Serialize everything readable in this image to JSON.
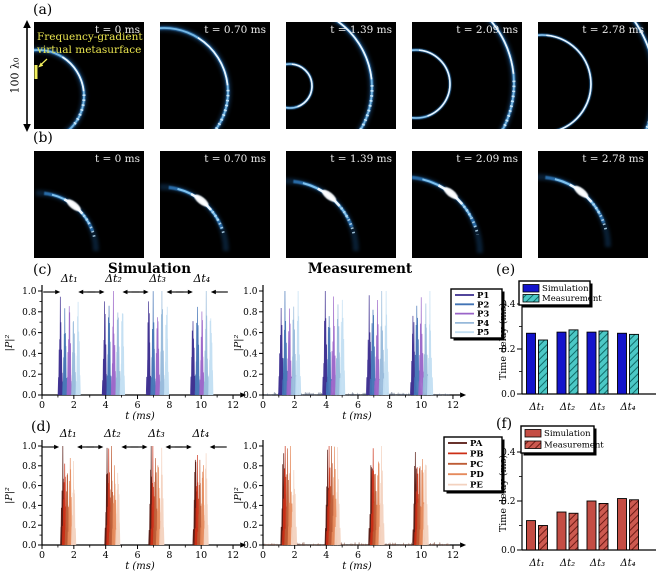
{
  "figure": {
    "labels": {
      "a": "(a)",
      "b": "(b)",
      "c": "(c)",
      "d": "(d)",
      "e": "(e)",
      "f": "(f)"
    },
    "scale_label": "100 λ₀",
    "metasurface_annotation_line1": "Frequency-gradient",
    "metasurface_annotation_line2": "virtual metasurface",
    "annotation_color": "#e9e44e",
    "row_a_timestamps": [
      "t = 0 ms",
      "t = 0.70 ms",
      "t = 1.39 ms",
      "t = 2.09 ms",
      "t = 2.78 ms"
    ],
    "row_b_timestamps": [
      "t = 0 ms",
      "t = 0.70 ms",
      "t = 1.39 ms",
      "t = 2.09 ms",
      "t = 2.78 ms"
    ]
  },
  "chart_data": [
    {
      "id": "c_simulation",
      "type": "line",
      "title": "Simulation",
      "xlabel": "t (ms)",
      "ylabel": "|P|²",
      "xlim": [
        0,
        12
      ],
      "ylim": [
        0,
        1.0
      ],
      "xticks": [
        0,
        2,
        4,
        6,
        8,
        10,
        12
      ],
      "yticks": [
        "0.0",
        "0.2",
        "0.4",
        "0.6",
        "0.8",
        "1.0"
      ],
      "annotations": [
        {
          "label": "Δt₁",
          "t": 1.71
        },
        {
          "label": "Δt₂",
          "t": 4.49
        },
        {
          "label": "Δt₃",
          "t": 7.26
        },
        {
          "label": "Δt₄",
          "t": 10.04
        }
      ],
      "series": [
        {
          "name": "P1",
          "color": "#3a2b8e",
          "peak": 0.97,
          "pulses": [
            1.15,
            3.93,
            6.7,
            9.48
          ]
        },
        {
          "name": "P2",
          "color": "#4273b5",
          "peak": 0.96,
          "pulses": [
            1.43,
            4.21,
            6.98,
            9.76
          ]
        },
        {
          "name": "P3",
          "color": "#9a64c8",
          "peak": 0.95,
          "pulses": [
            1.71,
            4.49,
            7.26,
            10.04
          ]
        },
        {
          "name": "P4",
          "color": "#97b9da",
          "peak": 0.96,
          "pulses": [
            1.99,
            4.77,
            7.54,
            10.32
          ]
        },
        {
          "name": "P5",
          "color": "#c2def2",
          "peak": 0.97,
          "pulses": [
            2.27,
            5.05,
            7.82,
            10.6
          ]
        }
      ]
    },
    {
      "id": "c_measurement",
      "type": "line",
      "title": "Measurement",
      "xlabel": "t (ms)",
      "ylabel": "|P|²",
      "xlim": [
        0,
        12
      ],
      "ylim": [
        0,
        1.0
      ],
      "xticks": [
        0,
        2,
        4,
        6,
        8,
        10,
        12
      ],
      "yticks": [
        "0.0",
        "0.2",
        "0.4",
        "0.6",
        "0.8",
        "1.0"
      ],
      "legend_position": "upper-right",
      "series": [
        {
          "name": "P1",
          "color": "#3a2b8e",
          "peak": 0.95,
          "pulses": [
            1.15,
            3.93,
            6.7,
            9.48
          ]
        },
        {
          "name": "P2",
          "color": "#4273b5",
          "peak": 0.96,
          "pulses": [
            1.39,
            4.17,
            6.94,
            9.72
          ]
        },
        {
          "name": "P3",
          "color": "#9a64c8",
          "peak": 0.94,
          "pulses": [
            1.67,
            4.46,
            7.22,
            10.0
          ]
        },
        {
          "name": "P4",
          "color": "#97b9da",
          "peak": 0.95,
          "pulses": [
            1.95,
            4.74,
            7.5,
            10.28
          ]
        },
        {
          "name": "P5",
          "color": "#c2def2",
          "peak": 0.97,
          "pulses": [
            2.22,
            5.0,
            7.77,
            10.55
          ]
        }
      ]
    },
    {
      "id": "d_simulation",
      "type": "line",
      "title": "",
      "xlabel": "t (ms)",
      "ylabel": "|P|²",
      "xlim": [
        0,
        12
      ],
      "ylim": [
        0,
        1.0
      ],
      "xticks": [
        0,
        2,
        4,
        6,
        8,
        10,
        12
      ],
      "yticks": [
        "0.0",
        "0.2",
        "0.4",
        "0.6",
        "0.8",
        "1.0"
      ],
      "annotations": [
        {
          "label": "Δt₁",
          "t": 1.64
        },
        {
          "label": "Δt₂",
          "t": 4.42
        },
        {
          "label": "Δt₃",
          "t": 7.19
        },
        {
          "label": "Δt₄",
          "t": 9.97
        }
      ],
      "series": [
        {
          "name": "PA",
          "color": "#53150e",
          "peak": 0.98,
          "pulses": [
            1.3,
            4.08,
            6.85,
            9.63
          ]
        },
        {
          "name": "PB",
          "color": "#cc2f16",
          "peak": 0.97,
          "pulses": [
            1.42,
            4.2,
            6.97,
            9.75
          ]
        },
        {
          "name": "PC",
          "color": "#bd5c35",
          "peak": 0.96,
          "pulses": [
            1.58,
            4.36,
            7.13,
            9.91
          ]
        },
        {
          "name": "PD",
          "color": "#e58a5c",
          "peak": 0.96,
          "pulses": [
            1.77,
            4.55,
            7.32,
            10.1
          ]
        },
        {
          "name": "PE",
          "color": "#f3d2bf",
          "peak": 0.95,
          "pulses": [
            1.98,
            4.76,
            7.53,
            10.31
          ]
        }
      ]
    },
    {
      "id": "d_measurement",
      "type": "line",
      "title": "",
      "xlabel": "t (ms)",
      "ylabel": "|P|²",
      "xlim": [
        0,
        12
      ],
      "ylim": [
        0,
        1.0
      ],
      "xticks": [
        0,
        2,
        4,
        6,
        8,
        10,
        12
      ],
      "yticks": [
        "0.0",
        "0.2",
        "0.4",
        "0.6",
        "0.8",
        "1.0"
      ],
      "legend_position": "upper-right",
      "series": [
        {
          "name": "PA",
          "color": "#53150e",
          "peak": 0.97,
          "pulses": [
            1.3,
            4.08,
            6.85,
            9.63
          ]
        },
        {
          "name": "PB",
          "color": "#cc2f16",
          "peak": 0.98,
          "pulses": [
            1.4,
            4.18,
            6.95,
            9.73
          ]
        },
        {
          "name": "PC",
          "color": "#bd5c35",
          "peak": 0.96,
          "pulses": [
            1.55,
            4.33,
            7.1,
            9.88
          ]
        },
        {
          "name": "PD",
          "color": "#e58a5c",
          "peak": 0.95,
          "pulses": [
            1.74,
            4.52,
            7.29,
            10.07
          ]
        },
        {
          "name": "PE",
          "color": "#f3d2bf",
          "peak": 0.95,
          "pulses": [
            1.95,
            4.72,
            7.49,
            10.27
          ]
        }
      ]
    },
    {
      "id": "e_time_delay",
      "type": "bar",
      "title": "",
      "xlabel": "",
      "ylabel": "Time delay (ms)",
      "ylim": [
        0,
        0.45
      ],
      "yticks": [
        "0.0",
        "0.2",
        "0.4"
      ],
      "categories": [
        "Δt₁",
        "Δt₂",
        "Δt₃",
        "Δt₄"
      ],
      "series": [
        {
          "name": "Simulation",
          "color": "#1414cc",
          "values": [
            0.27,
            0.275,
            0.275,
            0.27
          ]
        },
        {
          "name": "Measurement",
          "color": "#4cc8c6",
          "hatch": "#0e6b68",
          "values": [
            0.24,
            0.285,
            0.28,
            0.265
          ]
        }
      ]
    },
    {
      "id": "f_time_delay",
      "type": "bar",
      "title": "",
      "xlabel": "",
      "ylabel": "Time delay (ms)",
      "ylim": [
        0,
        0.45
      ],
      "yticks": [
        "0.0",
        "0.2",
        "0.4"
      ],
      "categories": [
        "Δt₁",
        "Δt₂",
        "Δt₃",
        "Δt₄"
      ],
      "series": [
        {
          "name": "Simulation",
          "color": "#c44d44",
          "values": [
            0.12,
            0.155,
            0.2,
            0.21
          ]
        },
        {
          "name": "Measurement",
          "color": "#cd5a50",
          "hatch": "#6e1a14",
          "values": [
            0.1,
            0.15,
            0.19,
            0.205
          ]
        }
      ]
    }
  ]
}
